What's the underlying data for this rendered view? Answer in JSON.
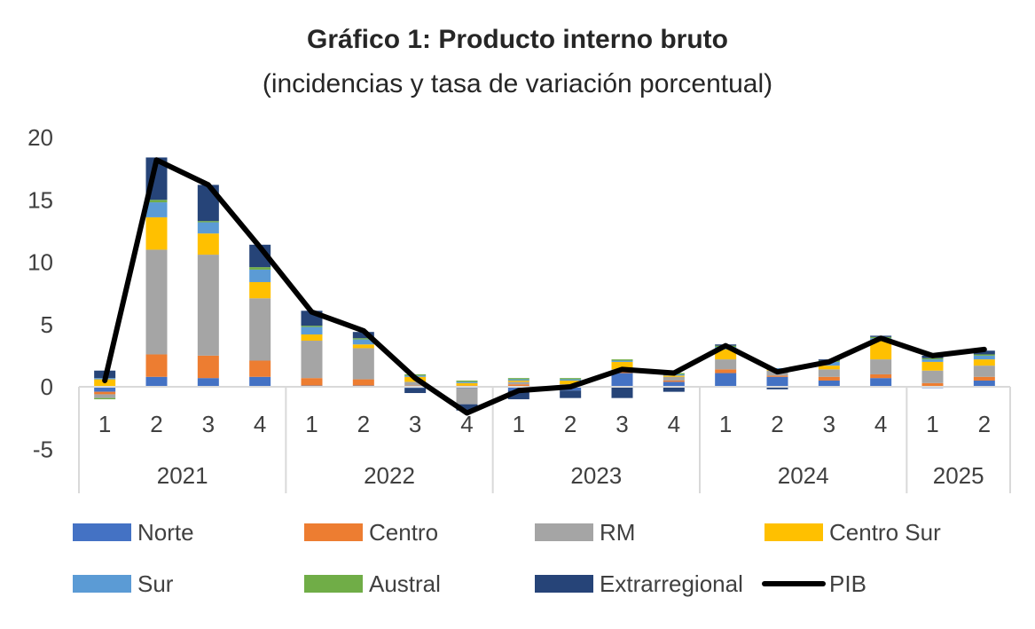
{
  "chart_data": {
    "type": "bar",
    "title": "Gráfico 1: Producto interno bruto",
    "subtitle": "(incidencias y tasa de variación porcentual)",
    "ylim": [
      -5,
      20
    ],
    "yticks": [
      -5,
      0,
      5,
      10,
      15,
      20
    ],
    "categories": [
      "1",
      "2",
      "3",
      "4",
      "1",
      "2",
      "3",
      "4",
      "1",
      "2",
      "3",
      "4",
      "1",
      "2",
      "3",
      "4",
      "1",
      "2"
    ],
    "groups": [
      {
        "label": "2021",
        "count": 4
      },
      {
        "label": "2022",
        "count": 4
      },
      {
        "label": "2023",
        "count": 4
      },
      {
        "label": "2024",
        "count": 4
      },
      {
        "label": "2025",
        "count": 2
      }
    ],
    "series": [
      {
        "name": "Norte",
        "kind": "bar",
        "color": "#4472C4",
        "values": [
          -0.4,
          0.8,
          0.7,
          0.8,
          0.1,
          0.1,
          -0.1,
          -0.1,
          -0.3,
          -0.3,
          1.1,
          0.4,
          1.1,
          0.8,
          0.5,
          0.7,
          -0.1,
          0.5
        ]
      },
      {
        "name": "Centro",
        "kind": "bar",
        "color": "#ED7D31",
        "values": [
          -0.2,
          1.8,
          1.8,
          1.3,
          0.6,
          0.5,
          0.1,
          0.1,
          0.2,
          0.1,
          0.1,
          0.1,
          0.3,
          0.1,
          0.3,
          0.3,
          0.3,
          0.3
        ]
      },
      {
        "name": "RM",
        "kind": "bar",
        "color": "#A5A5A5",
        "values": [
          -0.3,
          8.4,
          8.1,
          5.0,
          3.0,
          2.5,
          0.3,
          -1.3,
          0.2,
          0.1,
          0.2,
          0.3,
          0.8,
          0.4,
          0.6,
          1.2,
          1.0,
          0.9
        ]
      },
      {
        "name": "Centro Sur",
        "kind": "bar",
        "color": "#FFC000",
        "values": [
          0.6,
          2.6,
          1.7,
          1.3,
          0.5,
          0.3,
          0.4,
          0.2,
          0.1,
          0.3,
          0.6,
          0.1,
          0.8,
          0.1,
          0.3,
          1.5,
          0.7,
          0.5
        ]
      },
      {
        "name": "Sur",
        "kind": "bar",
        "color": "#5B9BD5",
        "values": [
          0.1,
          1.2,
          0.9,
          1.0,
          0.6,
          0.4,
          0.1,
          0.1,
          0.1,
          0.1,
          0.1,
          0.1,
          0.2,
          0.1,
          0.3,
          0.2,
          0.2,
          0.3
        ]
      },
      {
        "name": "Austral",
        "kind": "bar",
        "color": "#70AD47",
        "values": [
          -0.1,
          0.2,
          0.1,
          0.2,
          0.1,
          0.1,
          0.1,
          0.1,
          0.1,
          0.1,
          0.1,
          0.1,
          0.1,
          0.0,
          0.1,
          0.1,
          0.1,
          0.1
        ]
      },
      {
        "name": "Extrarregional",
        "kind": "bar",
        "color": "#264478",
        "values": [
          0.6,
          3.4,
          2.9,
          1.8,
          1.2,
          0.5,
          -0.4,
          -0.5,
          -0.7,
          -0.6,
          -0.9,
          -0.4,
          0.1,
          -0.2,
          0.1,
          0.1,
          0.2,
          0.3
        ]
      },
      {
        "name": "PIB",
        "kind": "line",
        "color": "#000000",
        "values": [
          0.5,
          18.2,
          16.2,
          11.2,
          6.0,
          4.5,
          0.7,
          -2.1,
          -0.3,
          0.0,
          1.4,
          1.1,
          3.3,
          1.2,
          2.0,
          3.9,
          2.5,
          3.0
        ]
      }
    ],
    "grid": false,
    "legend_placement": "bottom"
  }
}
